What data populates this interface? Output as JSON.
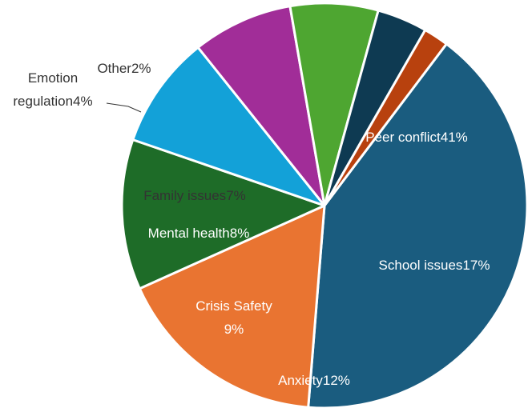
{
  "chart_data": {
    "type": "pie",
    "title": "",
    "start_angle_deg": -53,
    "slices": [
      {
        "label": "Peer conflict",
        "pct_label": "41%",
        "value": 41,
        "color": "#1A5C7F",
        "text_color": "#ffffff"
      },
      {
        "label": "School issues",
        "pct_label": "17%",
        "value": 17,
        "color": "#E97431",
        "text_color": "#ffffff"
      },
      {
        "label": "Anxiety",
        "pct_label": "12%",
        "value": 12,
        "color": "#1E6C28",
        "text_color": "#ffffff"
      },
      {
        "label": "Crisis Safety",
        "pct_label": "9%",
        "value": 9,
        "color": "#13A1D8",
        "text_color": "#ffffff"
      },
      {
        "label": "Mental health",
        "pct_label": "8%",
        "value": 8,
        "color": "#A12D98",
        "text_color": "#ffffff"
      },
      {
        "label": "Family issues",
        "pct_label": "7%",
        "value": 7,
        "color": "#4EA631",
        "text_color": "#333333"
      },
      {
        "label": "Emotion regulation",
        "label_lines": [
          "Emotion",
          "regulation"
        ],
        "pct_label": "4%",
        "value": 4,
        "color": "#0E3A52",
        "text_color": "#333333"
      },
      {
        "label": "Other",
        "pct_label": "2%",
        "value": 2,
        "color": "#B8410E",
        "text_color": "#333333"
      }
    ]
  }
}
